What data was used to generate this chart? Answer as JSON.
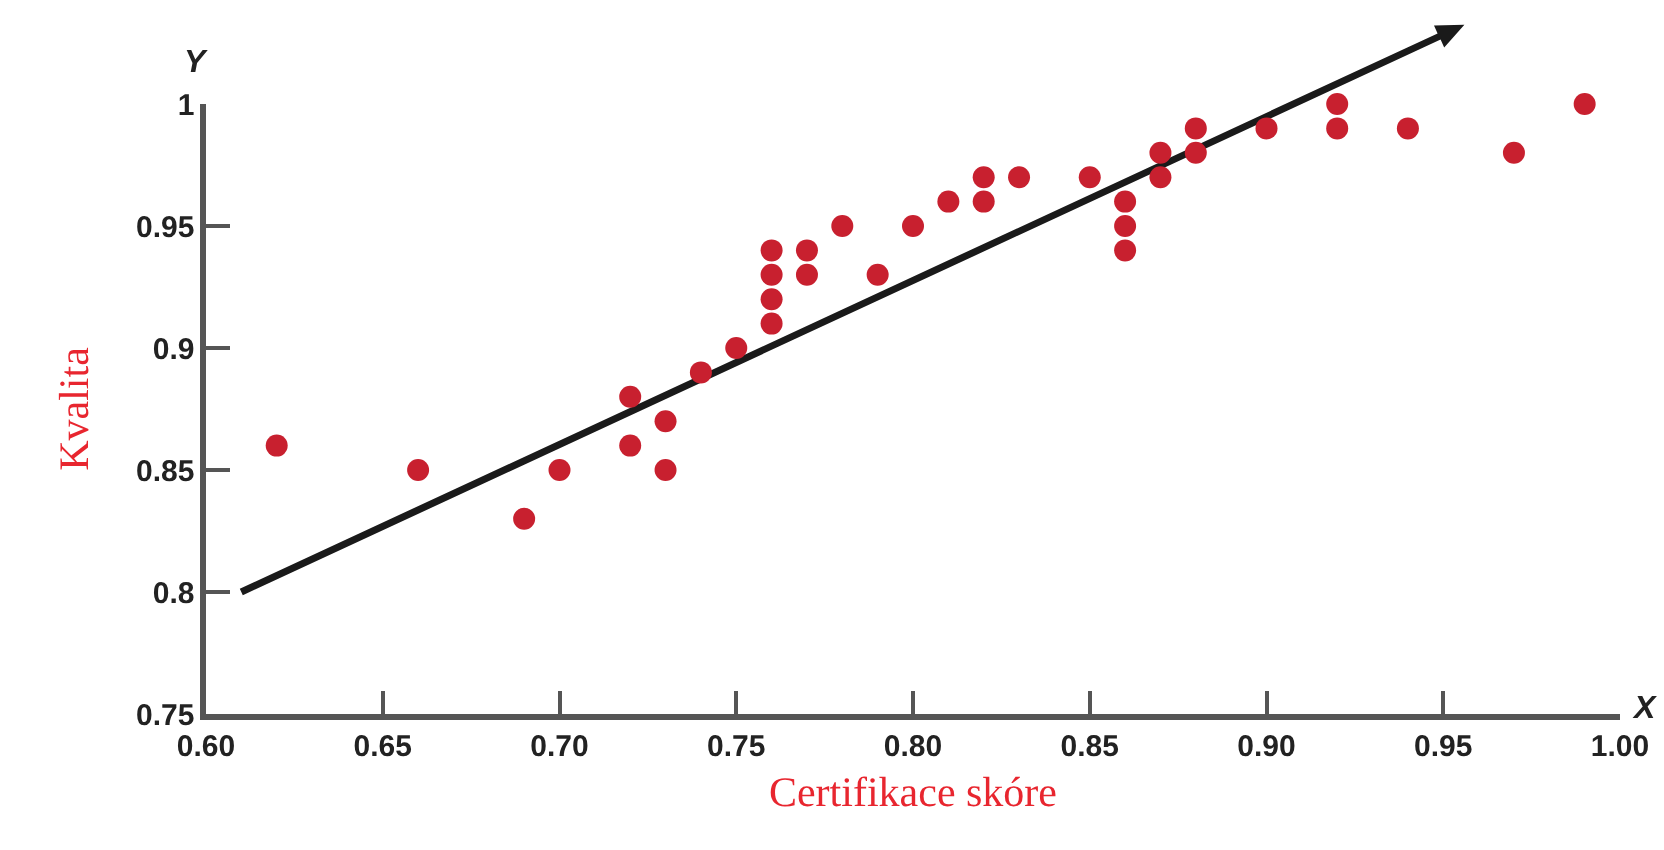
{
  "chart_data": {
    "type": "scatter",
    "xlabel": "Certifikace skóre",
    "ylabel": "Kvalita",
    "annotations": [
      "Y",
      "X"
    ],
    "xlim": [
      0.6,
      1.0
    ],
    "ylim": [
      0.75,
      1.0
    ],
    "xticks": [
      {
        "value": 0.6,
        "label": "0.60"
      },
      {
        "value": 0.65,
        "label": "0.65"
      },
      {
        "value": 0.7,
        "label": "0.70"
      },
      {
        "value": 0.75,
        "label": "0.75"
      },
      {
        "value": 0.8,
        "label": "0.80"
      },
      {
        "value": 0.85,
        "label": "0.85"
      },
      {
        "value": 0.9,
        "label": "0.90"
      },
      {
        "value": 0.95,
        "label": "0.95"
      },
      {
        "value": 1.0,
        "label": "1.00"
      }
    ],
    "yticks": [
      0.75,
      0.8,
      0.85,
      0.9,
      0.95,
      1
    ],
    "grid": false,
    "legend": false,
    "marker": "circle",
    "color": "#c8202f",
    "x": [
      0.62,
      0.66,
      0.69,
      0.7,
      0.72,
      0.72,
      0.73,
      0.73,
      0.74,
      0.75,
      0.76,
      0.76,
      0.76,
      0.76,
      0.77,
      0.77,
      0.78,
      0.79,
      0.8,
      0.81,
      0.82,
      0.82,
      0.83,
      0.85,
      0.86,
      0.86,
      0.86,
      0.87,
      0.87,
      0.88,
      0.88,
      0.9,
      0.92,
      0.92,
      0.94,
      0.97,
      0.99
    ],
    "values": [
      0.86,
      0.85,
      0.83,
      0.85,
      0.88,
      0.86,
      0.87,
      0.85,
      0.89,
      0.9,
      0.94,
      0.93,
      0.92,
      0.91,
      0.94,
      0.93,
      0.95,
      0.93,
      0.95,
      0.96,
      0.97,
      0.96,
      0.97,
      0.97,
      0.96,
      0.95,
      0.94,
      0.98,
      0.97,
      0.99,
      0.98,
      0.99,
      1.0,
      0.99,
      0.99,
      0.98,
      1.0
    ]
  }
}
